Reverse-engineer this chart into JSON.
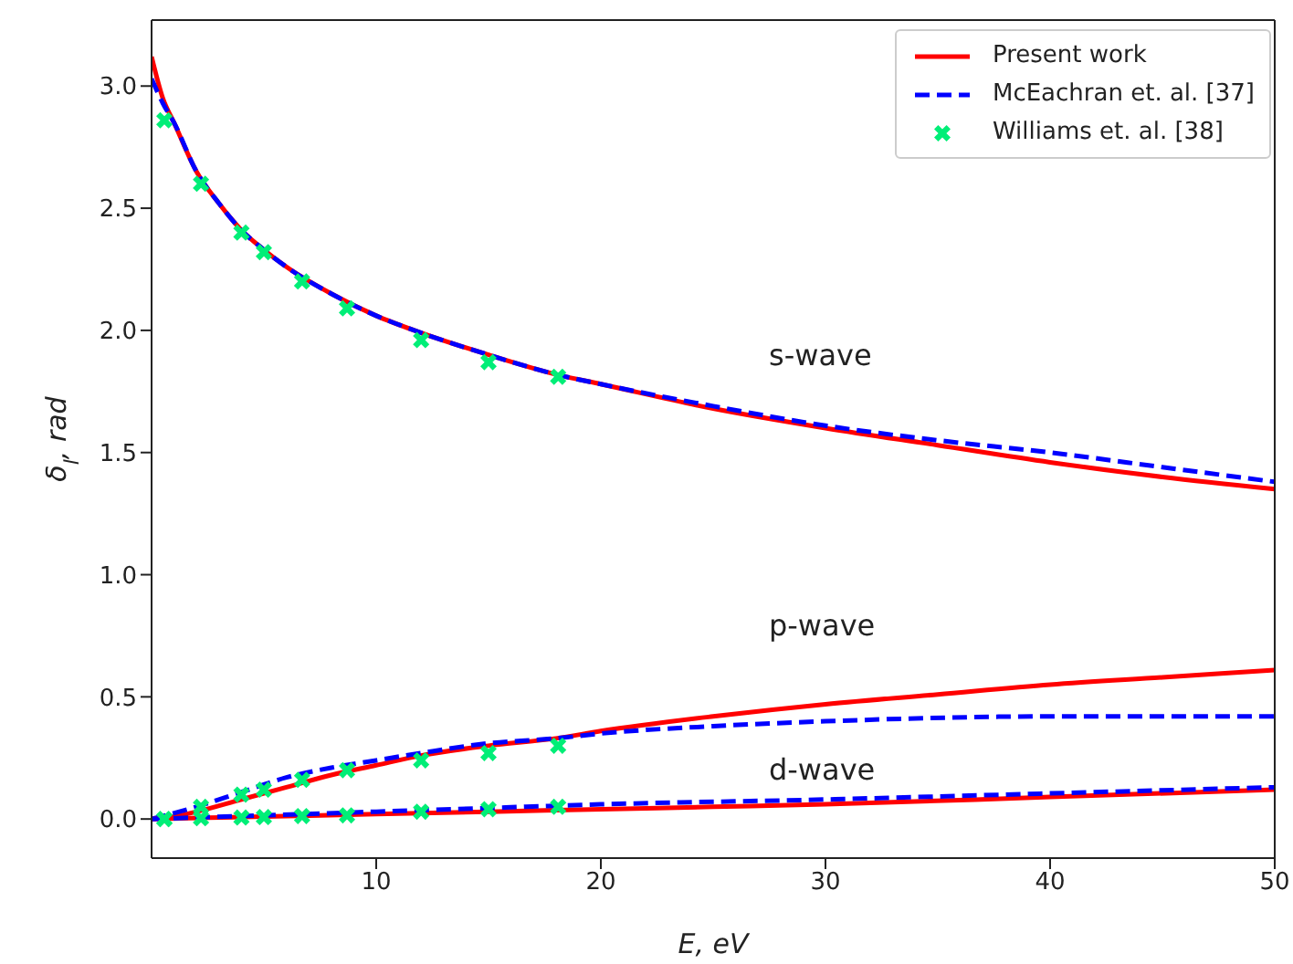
{
  "chart_data": {
    "type": "line",
    "xlabel": "E, eV",
    "ylabel": "δ$_{l}$, rad",
    "xlim": [
      0,
      50
    ],
    "ylim": [
      -0.16,
      3.27
    ],
    "xticks": [
      10,
      20,
      30,
      40,
      50
    ],
    "yticks": [
      {
        "value": 0,
        "label": "0.0"
      },
      {
        "value": 0.5,
        "label": "0.5"
      },
      {
        "value": 1,
        "label": "1.0"
      },
      {
        "value": 1.5,
        "label": "1.5"
      },
      {
        "value": 2,
        "label": "2.0"
      },
      {
        "value": 2.5,
        "label": "2.5"
      },
      {
        "value": 3,
        "label": "3.0"
      }
    ],
    "legend": "top right",
    "annotations": [
      "s-wave",
      "p-wave",
      "d-wave"
    ],
    "series": [
      {
        "name": "Present work",
        "color": "#ff0000",
        "line_style": "solid",
        "marker": "none",
        "x": [
          0,
          0.5,
          1,
          2,
          3,
          4,
          5,
          6,
          8,
          10,
          12,
          15,
          18,
          20,
          25,
          30,
          35,
          40,
          45,
          50
        ],
        "values": [
          3.12,
          2.95,
          2.85,
          2.65,
          2.52,
          2.41,
          2.33,
          2.26,
          2.15,
          2.06,
          1.99,
          1.9,
          1.82,
          1.78,
          1.68,
          1.6,
          1.53,
          1.46,
          1.4,
          1.35
        ]
      },
      {
        "name": "McEachran et. al. [37]",
        "color": "#0000ff",
        "line_style": "dashed",
        "marker": "none",
        "x": [
          0,
          0.5,
          1,
          2,
          3,
          4,
          5,
          6,
          8,
          10,
          12,
          15,
          18,
          20,
          25,
          30,
          35,
          40,
          45,
          50
        ],
        "values": [
          3.03,
          2.93,
          2.85,
          2.65,
          2.52,
          2.41,
          2.33,
          2.26,
          2.15,
          2.06,
          1.99,
          1.9,
          1.82,
          1.78,
          1.69,
          1.61,
          1.55,
          1.5,
          1.44,
          1.38
        ]
      },
      {
        "name": "Williams et. al. [38]",
        "type": "scatter",
        "color": "#00ee77",
        "marker": "cross",
        "x": [
          0.57,
          2.2,
          4,
          5,
          6.7,
          8.7,
          12,
          15,
          18.1
        ],
        "values": [
          2.86,
          2.6,
          2.4,
          2.32,
          2.2,
          2.09,
          1.96,
          1.87,
          1.81
        ]
      },
      {
        "type": "line",
        "color": "#ff0000",
        "line_style": "solid",
        "marker": "none",
        "x": [
          0,
          1,
          2,
          4,
          6,
          8,
          10,
          12,
          15,
          18,
          20,
          25,
          30,
          35,
          40,
          45,
          50
        ],
        "values": [
          0,
          0.01,
          0.03,
          0.08,
          0.13,
          0.18,
          0.22,
          0.26,
          0.3,
          0.33,
          0.36,
          0.42,
          0.47,
          0.51,
          0.55,
          0.58,
          0.61
        ]
      },
      {
        "type": "line",
        "color": "#0000ff",
        "line_style": "dashed",
        "marker": "none",
        "x": [
          0,
          2,
          4,
          6,
          8,
          10,
          12,
          15,
          18,
          20,
          25,
          30,
          40,
          50
        ],
        "values": [
          0,
          0.05,
          0.11,
          0.17,
          0.21,
          0.24,
          0.27,
          0.31,
          0.33,
          0.35,
          0.38,
          0.4,
          0.42,
          0.42
        ]
      },
      {
        "type": "scatter",
        "color": "#00ee77",
        "marker": "cross",
        "x": [
          0.57,
          2.2,
          4,
          5,
          6.7,
          8.7,
          12,
          15,
          18.1
        ],
        "values": [
          0,
          0.05,
          0.1,
          0.12,
          0.16,
          0.2,
          0.24,
          0.27,
          0.3
        ]
      },
      {
        "type": "line",
        "color": "#ff0000",
        "line_style": "solid",
        "marker": "none",
        "x": [
          0,
          5,
          10,
          15,
          20,
          25,
          30,
          40,
          50
        ],
        "values": [
          0,
          0.01,
          0.02,
          0.03,
          0.04,
          0.05,
          0.06,
          0.09,
          0.12
        ]
      },
      {
        "type": "line",
        "color": "#0000ff",
        "line_style": "dashed",
        "marker": "none",
        "x": [
          0,
          5,
          10,
          15,
          20,
          30,
          40,
          50
        ],
        "values": [
          0,
          0.015,
          0.03,
          0.045,
          0.06,
          0.08,
          0.105,
          0.13
        ]
      },
      {
        "type": "scatter",
        "color": "#00ee77",
        "marker": "cross",
        "x": [
          0.57,
          2.2,
          4,
          5,
          6.7,
          8.7,
          12,
          15,
          18.1
        ],
        "values": [
          0,
          0.003,
          0.006,
          0.008,
          0.012,
          0.015,
          0.03,
          0.04,
          0.05
        ]
      }
    ]
  }
}
